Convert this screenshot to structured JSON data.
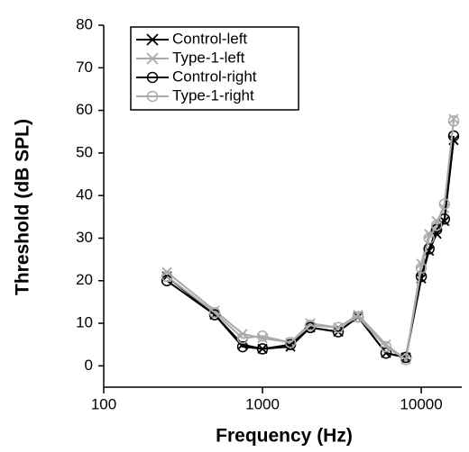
{
  "chart_data": {
    "type": "line",
    "x_label": "Frequency (Hz)",
    "y_label": "Threshold (dB SPL)",
    "x_scale": "log",
    "legend": "upper left",
    "x": [
      250,
      500,
      750,
      1000,
      1500,
      2000,
      3000,
      4000,
      6000,
      8000,
      10000,
      11200,
      12500,
      14000,
      16000
    ],
    "series": [
      {
        "name": "Control-left",
        "color": "#000000",
        "marker": "x",
        "values": [
          21,
          12,
          5,
          4,
          4.5,
          9,
          8,
          11.5,
          3,
          2,
          20.5,
          27,
          31,
          34,
          53
        ]
      },
      {
        "name": "Type-1-left",
        "color": "#aaaaaa",
        "marker": "x",
        "values": [
          22,
          13,
          7.5,
          6.5,
          5.5,
          10,
          9,
          12,
          5,
          1.5,
          24,
          31,
          34,
          37,
          58
        ]
      },
      {
        "name": "Control-right",
        "color": "#000000",
        "marker": "o",
        "values": [
          20,
          12,
          4.5,
          4,
          5,
          9,
          8,
          11.5,
          3,
          2,
          21,
          27.5,
          32,
          34.5,
          54
        ]
      },
      {
        "name": "Type-1-right",
        "color": "#aaaaaa",
        "marker": "o",
        "values": [
          21,
          12.5,
          6.5,
          7,
          5.5,
          9.5,
          9,
          11.5,
          4.5,
          1.5,
          23,
          30,
          33,
          38,
          57.5
        ]
      }
    ],
    "xlim": [
      100,
      18000
    ],
    "xticks": [
      100,
      1000,
      10000
    ],
    "ylim": [
      -5,
      80
    ],
    "yticks": [
      0,
      10,
      20,
      30,
      40,
      50,
      60,
      70,
      80
    ]
  }
}
